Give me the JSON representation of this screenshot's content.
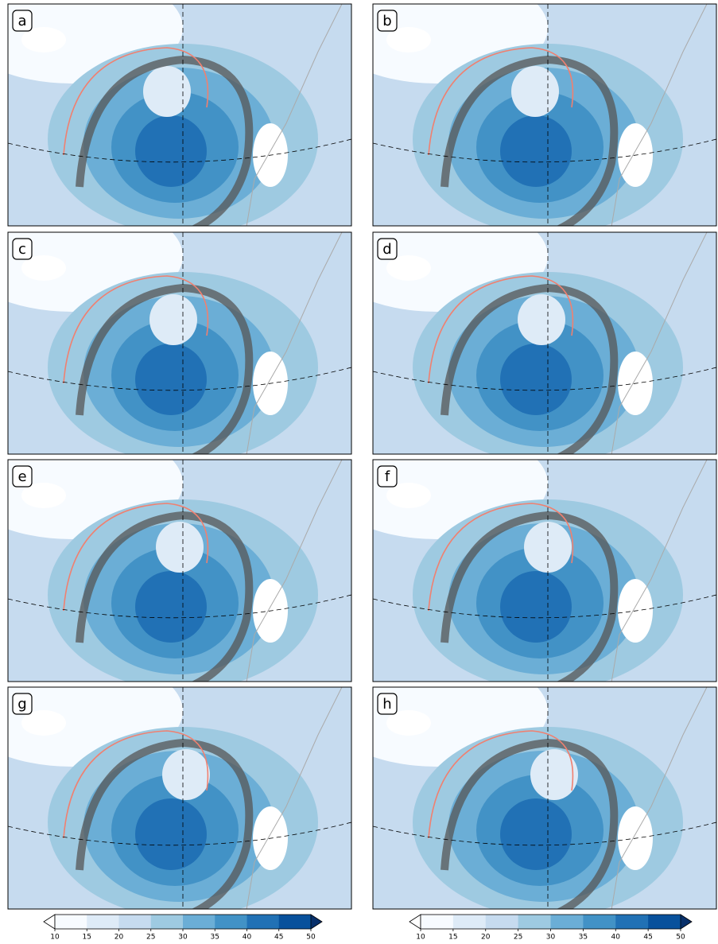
{
  "panels": [
    {
      "label": "a"
    },
    {
      "label": "b"
    },
    {
      "label": "c"
    },
    {
      "label": "d"
    },
    {
      "label": "e"
    },
    {
      "label": "f"
    },
    {
      "label": "g"
    },
    {
      "label": "h"
    }
  ],
  "colorbars": [
    {
      "ticks": [
        10,
        15,
        20,
        25,
        30,
        35,
        40,
        45,
        50
      ],
      "colors": [
        "#ffffff",
        "#f7fbff",
        "#deebf7",
        "#c6dbef",
        "#9ecae1",
        "#6baed6",
        "#4292c6",
        "#2171b5",
        "#08519c",
        "#08306b"
      ]
    },
    {
      "ticks": [
        10,
        15,
        20,
        25,
        30,
        35,
        40,
        45,
        50
      ],
      "colors": [
        "#ffffff",
        "#f7fbff",
        "#deebf7",
        "#c6dbef",
        "#9ecae1",
        "#6baed6",
        "#4292c6",
        "#2171b5",
        "#08519c",
        "#08306b"
      ]
    }
  ]
}
